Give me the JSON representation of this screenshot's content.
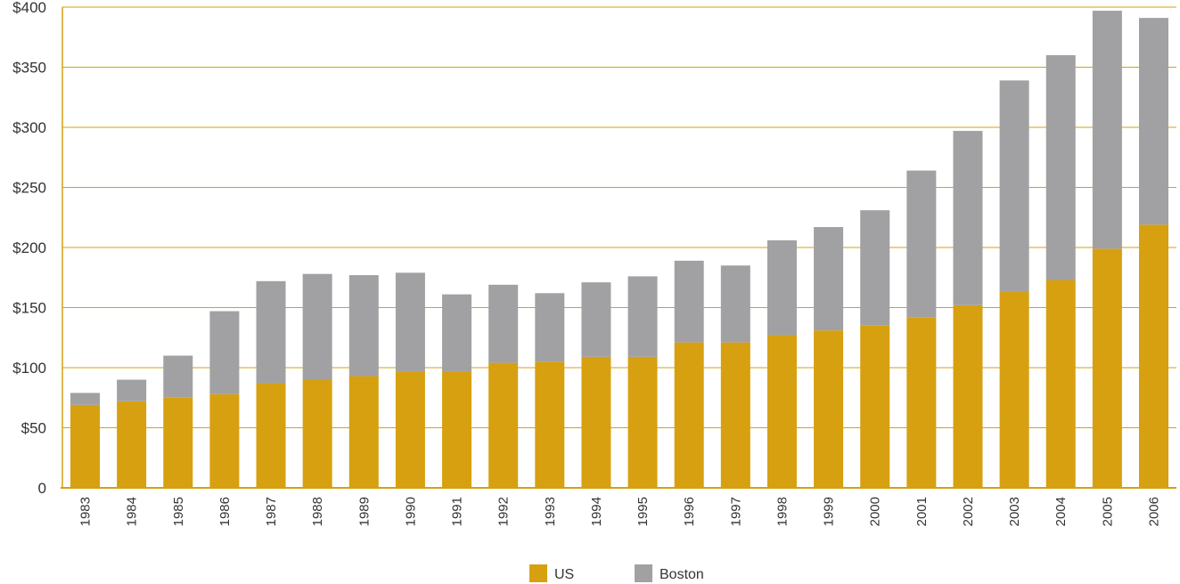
{
  "chart_data": {
    "type": "bar",
    "stacked": true,
    "categories": [
      "1983",
      "1984",
      "1985",
      "1986",
      "1987",
      "1988",
      "1989",
      "1990",
      "1991",
      "1992",
      "1993",
      "1994",
      "1995",
      "1996",
      "1997",
      "1998",
      "1999",
      "2000",
      "2001",
      "2002",
      "2003",
      "2004",
      "2005",
      "2006"
    ],
    "series": [
      {
        "name": "US",
        "color": "#d6a010",
        "values": [
          69,
          72,
          75,
          78,
          87,
          90,
          93,
          97,
          97,
          104,
          105,
          109,
          109,
          121,
          121,
          127,
          131,
          135,
          142,
          152,
          163,
          173,
          199,
          219
        ]
      },
      {
        "name": "Boston",
        "color": "#a1a1a3",
        "values": [
          10,
          18,
          35,
          69,
          85,
          88,
          84,
          82,
          64,
          65,
          57,
          62,
          67,
          68,
          64,
          79,
          86,
          96,
          122,
          145,
          176,
          187,
          198,
          172
        ]
      }
    ],
    "ylim": [
      0,
      400
    ],
    "yticks": [
      {
        "value": 0,
        "label": "0"
      },
      {
        "value": 50,
        "label": "$50"
      },
      {
        "value": 100,
        "label": "$100"
      },
      {
        "value": 150,
        "label": "$150"
      },
      {
        "value": 200,
        "label": "$200"
      },
      {
        "value": 250,
        "label": "$250"
      },
      {
        "value": 300,
        "label": "$300"
      },
      {
        "value": 350,
        "label": "$350"
      },
      {
        "value": 400,
        "label": "$400"
      }
    ],
    "grid": true,
    "gridColor": "#d6a010",
    "legend": "bottom-center",
    "title": "",
    "xlabel": "",
    "ylabel": ""
  }
}
